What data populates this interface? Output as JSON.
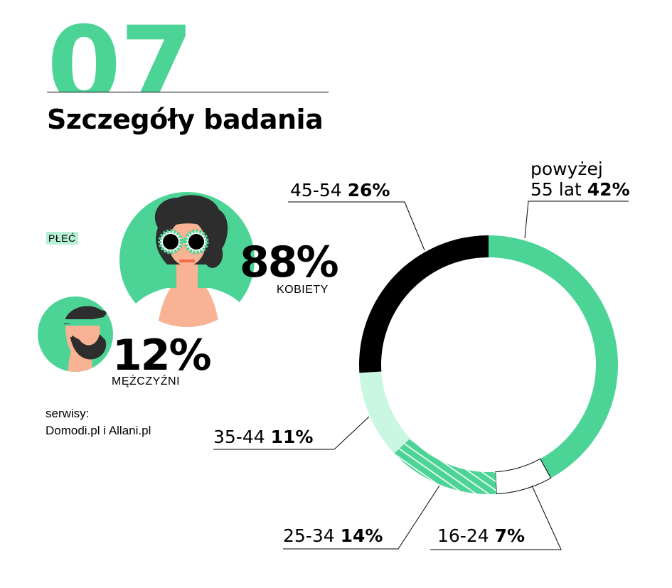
{
  "header": {
    "number": "07",
    "title": "Szczegóły badania"
  },
  "gender": {
    "label": "PŁEĆ",
    "women_pct": "88%",
    "women_label": "KOBIETY",
    "men_pct": "12%",
    "men_label": "MĘŻCZYŹNI"
  },
  "services": {
    "label": "serwisy:",
    "value": "Domodi.pl i Allani.pl"
  },
  "colors": {
    "accent": "#4cd497",
    "light_accent": "#c9f7e2",
    "black": "#000000",
    "skin": "#f7b393",
    "hair": "#2d2d2d"
  },
  "chart_data": {
    "type": "pie",
    "title": "",
    "series": [
      {
        "name": "powyżej 55 lat",
        "value": 42,
        "fill": "#4cd497"
      },
      {
        "name": "16-24",
        "value": 7,
        "fill": "#ffffff"
      },
      {
        "name": "25-34",
        "value": 14,
        "fill": "stripes"
      },
      {
        "name": "35-44",
        "value": 11,
        "fill": "#c9f7e2"
      },
      {
        "name": "45-54",
        "value": 26,
        "fill": "#000000"
      }
    ],
    "labels": {
      "s55_line1": "powyżej",
      "s55_line2": "55 lat",
      "s55_pct": "42%",
      "s1624": "16-24",
      "s1624_pct": "7%",
      "s2534": "25-34",
      "s2534_pct": "14%",
      "s3544": "35-44",
      "s3544_pct": "11%",
      "s4554": "45-54",
      "s4554_pct": "26%"
    }
  }
}
